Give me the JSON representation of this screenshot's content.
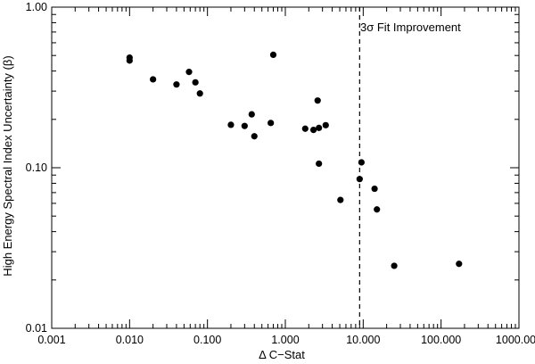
{
  "chart_data": {
    "type": "scatter",
    "title": "",
    "xlabel": "Δ C−Stat",
    "ylabel": "High Energy Spectral Index Uncertainty (β)",
    "xscale": "log",
    "yscale": "log",
    "xlim": [
      0.001,
      1000
    ],
    "ylim": [
      0.01,
      1.0
    ],
    "x_ticks": [
      0.001,
      0.01,
      0.1,
      1,
      10,
      100,
      1000
    ],
    "x_tick_labels": [
      "0.001",
      "0.010",
      "0.100",
      "1.000",
      "10.000",
      "100.000",
      "1000.000"
    ],
    "y_ticks": [
      0.01,
      0.1,
      1.0
    ],
    "y_tick_labels": [
      "0.01",
      "0.10",
      "1.00"
    ],
    "grid": false,
    "marker_color": "#000000",
    "threshold": {
      "x": 9.0,
      "style": "dashed",
      "label": "3σ Fit Improvement"
    },
    "points": [
      {
        "x": 0.01,
        "y": 0.485
      },
      {
        "x": 0.01,
        "y": 0.465
      },
      {
        "x": 0.02,
        "y": 0.355
      },
      {
        "x": 0.04,
        "y": 0.33
      },
      {
        "x": 0.058,
        "y": 0.395
      },
      {
        "x": 0.07,
        "y": 0.34
      },
      {
        "x": 0.08,
        "y": 0.29
      },
      {
        "x": 0.2,
        "y": 0.185
      },
      {
        "x": 0.3,
        "y": 0.182
      },
      {
        "x": 0.37,
        "y": 0.215
      },
      {
        "x": 0.4,
        "y": 0.157
      },
      {
        "x": 0.65,
        "y": 0.19
      },
      {
        "x": 0.7,
        "y": 0.505
      },
      {
        "x": 1.8,
        "y": 0.175
      },
      {
        "x": 2.3,
        "y": 0.172
      },
      {
        "x": 2.6,
        "y": 0.262
      },
      {
        "x": 2.7,
        "y": 0.177
      },
      {
        "x": 2.7,
        "y": 0.106
      },
      {
        "x": 3.3,
        "y": 0.184
      },
      {
        "x": 5.1,
        "y": 0.063
      },
      {
        "x": 9.0,
        "y": 0.085
      },
      {
        "x": 9.5,
        "y": 0.108
      },
      {
        "x": 14.0,
        "y": 0.074
      },
      {
        "x": 15.0,
        "y": 0.055
      },
      {
        "x": 25.0,
        "y": 0.0245
      },
      {
        "x": 170.0,
        "y": 0.0252
      }
    ]
  }
}
